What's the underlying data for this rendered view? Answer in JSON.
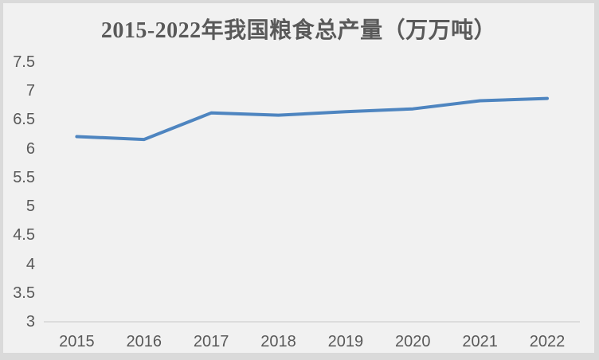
{
  "window": {
    "background": "#f1f1f1",
    "frame_color": "#dadada"
  },
  "chart_data": {
    "type": "line",
    "title": "2015-2022年我国粮食总产量（万万吨）",
    "categories": [
      "2015",
      "2016",
      "2017",
      "2018",
      "2019",
      "2020",
      "2021",
      "2022"
    ],
    "values": [
      6.21,
      6.16,
      6.62,
      6.58,
      6.64,
      6.69,
      6.83,
      6.87
    ],
    "xlabel": "",
    "ylabel": "",
    "ylim": [
      3,
      7.5
    ],
    "ytick_labels": [
      "7.5",
      "7",
      "6.5",
      "6",
      "5.5",
      "5",
      "4.5",
      "4",
      "3.5",
      "3"
    ],
    "yticks": [
      7.5,
      7,
      6.5,
      6,
      5.5,
      5,
      4.5,
      4,
      3.5,
      3
    ],
    "grid": false,
    "legend_position": "none",
    "line_color": "#4e85c0",
    "axis_color": "#d6d6d6",
    "text_color": "#595959",
    "title_color": "#595959"
  }
}
